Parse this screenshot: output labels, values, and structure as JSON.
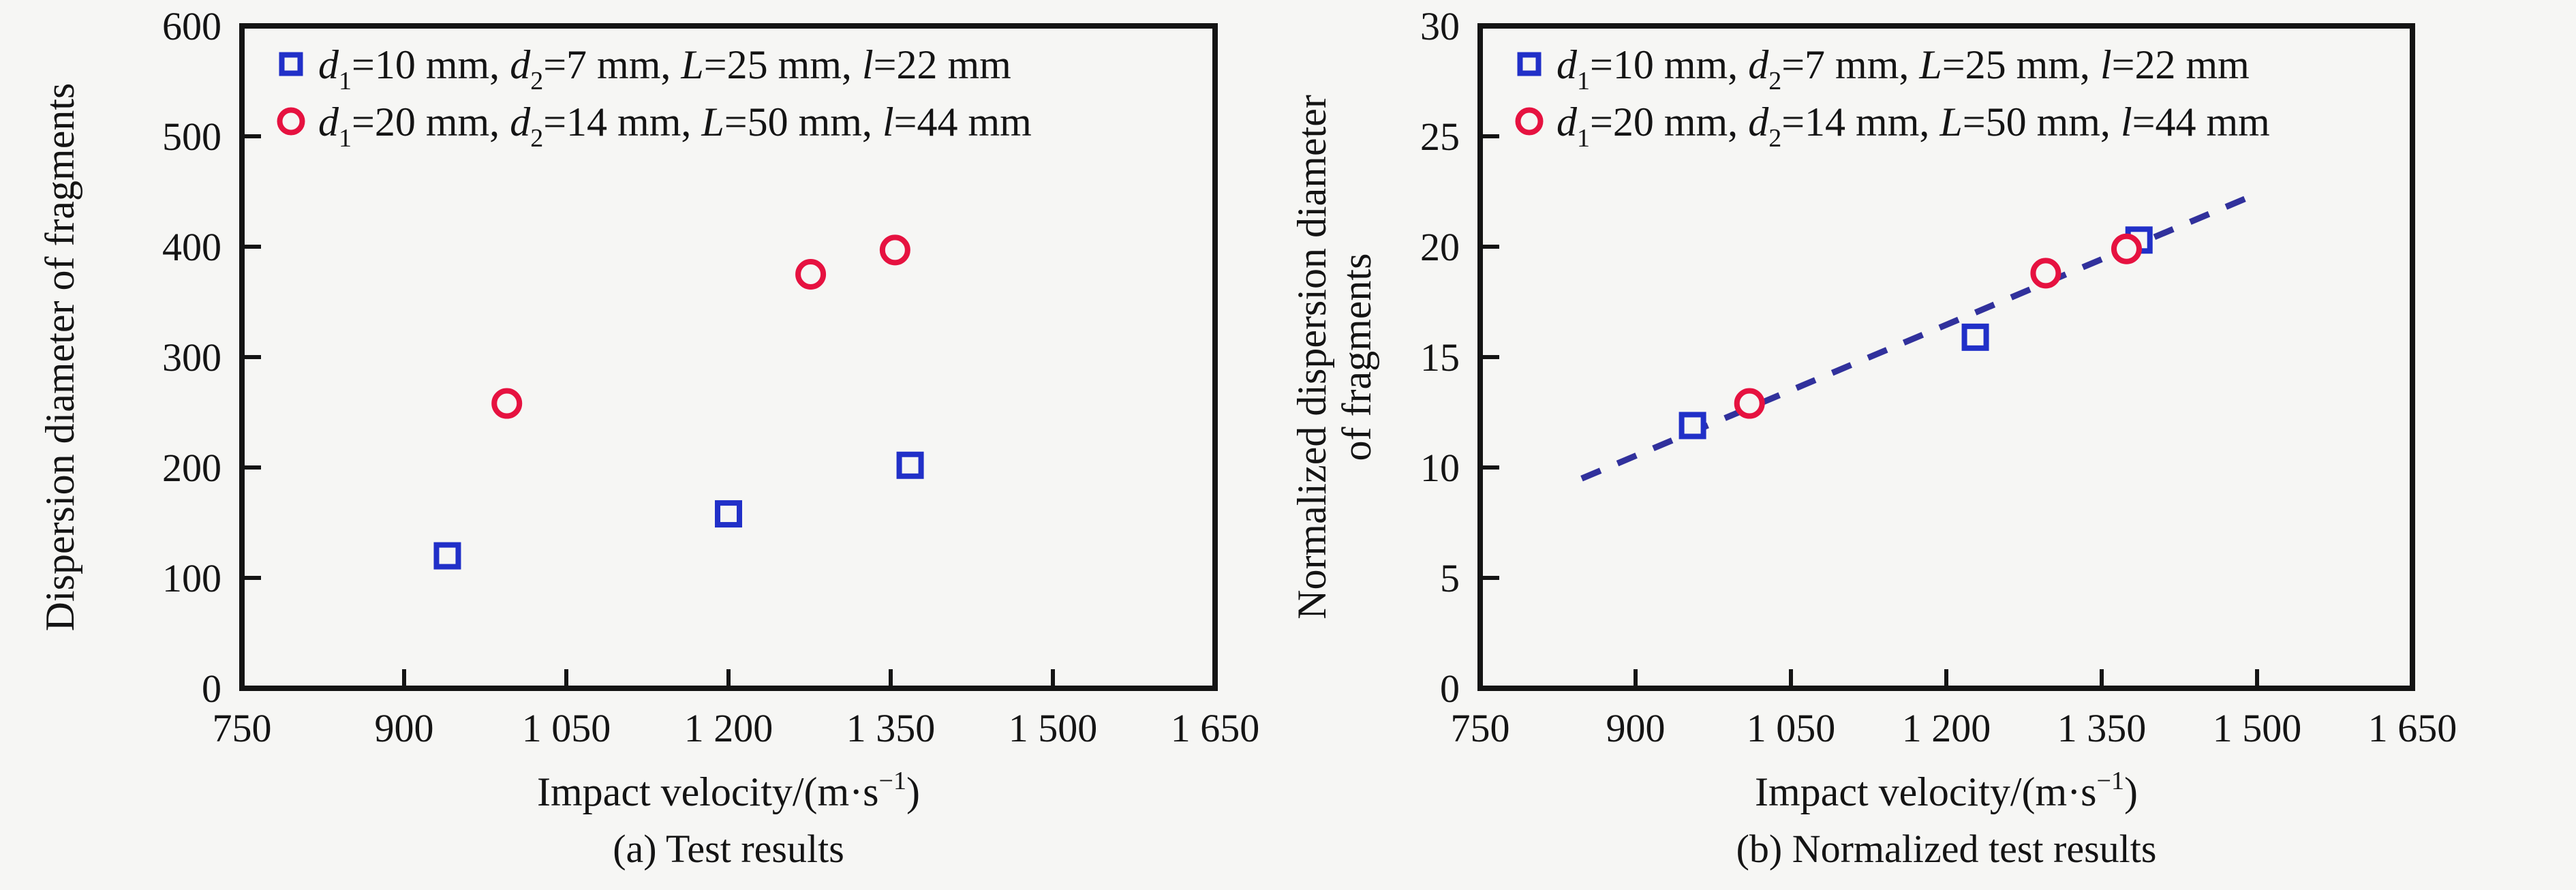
{
  "page": {
    "background_color": "#f6f6f4",
    "text_color": "#141414",
    "accent_blue": "#2130c8",
    "accent_red": "#e61240",
    "fit_line_color": "#31319c"
  },
  "legend_entries": [
    {
      "marker": "square",
      "color": "#2130c8",
      "label": "d1=10 mm, d2=7 mm, L=25 mm, l=22 mm",
      "parts": [
        {
          "t": "d",
          "i": 1
        },
        {
          "t": "1",
          "sub": 1
        },
        {
          "t": "=10 mm, "
        },
        {
          "t": "d",
          "i": 1
        },
        {
          "t": "2",
          "sub": 1
        },
        {
          "t": "=7 mm, "
        },
        {
          "t": "L",
          "i": 1
        },
        {
          "t": "=25 mm, "
        },
        {
          "t": "l",
          "i": 1
        },
        {
          "t": "=22 mm"
        }
      ]
    },
    {
      "marker": "circle",
      "color": "#e61240",
      "label": "d1=20 mm, d2=14 mm, L=50 mm, l=44 mm",
      "parts": [
        {
          "t": "d",
          "i": 1
        },
        {
          "t": "1",
          "sub": 1
        },
        {
          "t": "=20 mm, "
        },
        {
          "t": "d",
          "i": 1
        },
        {
          "t": "2",
          "sub": 1
        },
        {
          "t": "=14 mm, "
        },
        {
          "t": "L",
          "i": 1
        },
        {
          "t": "=50 mm, "
        },
        {
          "t": "l",
          "i": 1
        },
        {
          "t": "=44 mm"
        }
      ]
    }
  ],
  "chart_data": [
    {
      "id": "a",
      "type": "scatter",
      "caption": "(a) Test results",
      "xlabel": "Impact velocity/(m·s−1)",
      "xlabel_parts": [
        {
          "t": "Impact velocity/(m·s"
        },
        {
          "t": "−1",
          "sup": 1
        },
        {
          "t": ")"
        }
      ],
      "ylabel_lines": [
        "Dispersion diameter of fragments"
      ],
      "xlim": [
        750,
        1650
      ],
      "ylim": [
        0,
        600
      ],
      "grid": false,
      "legend_position": "top-left-inside",
      "xticks": {
        "values": [
          750,
          900,
          1050,
          1200,
          1350,
          1500,
          1650
        ],
        "labels": [
          "750",
          "900",
          "1 050",
          "1 200",
          "1 350",
          "1 500",
          "1 650"
        ]
      },
      "yticks": {
        "values": [
          0,
          100,
          200,
          300,
          400,
          500,
          600
        ],
        "labels": [
          "0",
          "100",
          "200",
          "300",
          "400",
          "500",
          "600"
        ]
      },
      "series": [
        {
          "name": "d1=10 mm, d2=7 mm, L=25 mm, l=22 mm",
          "marker": "square",
          "color": "#2130c8",
          "points": [
            [
              940,
              120
            ],
            [
              1200,
              158
            ],
            [
              1368,
              202
            ]
          ]
        },
        {
          "name": "d1=20 mm, d2=14 mm, L=50 mm, l=44 mm",
          "marker": "circle",
          "color": "#e61240",
          "points": [
            [
              995,
              258
            ],
            [
              1276,
              375
            ],
            [
              1354,
              397
            ]
          ]
        }
      ]
    },
    {
      "id": "b",
      "type": "scatter",
      "caption": "(b) Normalized test results",
      "xlabel": "Impact velocity/(m·s−1)",
      "xlabel_parts": [
        {
          "t": "Impact velocity/(m·s"
        },
        {
          "t": "−1",
          "sup": 1
        },
        {
          "t": ")"
        }
      ],
      "ylabel_lines": [
        "Normalized dispersion diameter",
        "of fragments"
      ],
      "xlim": [
        750,
        1650
      ],
      "ylim": [
        0,
        30
      ],
      "grid": false,
      "legend_position": "top-left-inside",
      "xticks": {
        "values": [
          750,
          900,
          1050,
          1200,
          1350,
          1500,
          1650
        ],
        "labels": [
          "750",
          "900",
          "1 050",
          "1 200",
          "1 350",
          "1 500",
          "1 650"
        ]
      },
      "yticks": {
        "values": [
          0,
          5,
          10,
          15,
          20,
          25,
          30
        ],
        "labels": [
          "0",
          "5",
          "10",
          "15",
          "20",
          "25",
          "30"
        ]
      },
      "series": [
        {
          "name": "d1=10 mm, d2=7 mm, L=25 mm, l=22 mm",
          "marker": "square",
          "color": "#2130c8",
          "points": [
            [
              955,
              11.9
            ],
            [
              1228,
              15.9
            ],
            [
              1386,
              20.3
            ]
          ]
        },
        {
          "name": "d1=20 mm, d2=14 mm, L=50 mm, l=44 mm",
          "marker": "circle",
          "color": "#e61240",
          "points": [
            [
              1010,
              12.9
            ],
            [
              1296,
              18.8
            ],
            [
              1374,
              19.9
            ]
          ]
        }
      ],
      "fit_line": {
        "style": "dashed",
        "color": "#31319c",
        "x": [
          848,
          1490
        ],
        "y": [
          9.5,
          22.2
        ]
      }
    }
  ]
}
